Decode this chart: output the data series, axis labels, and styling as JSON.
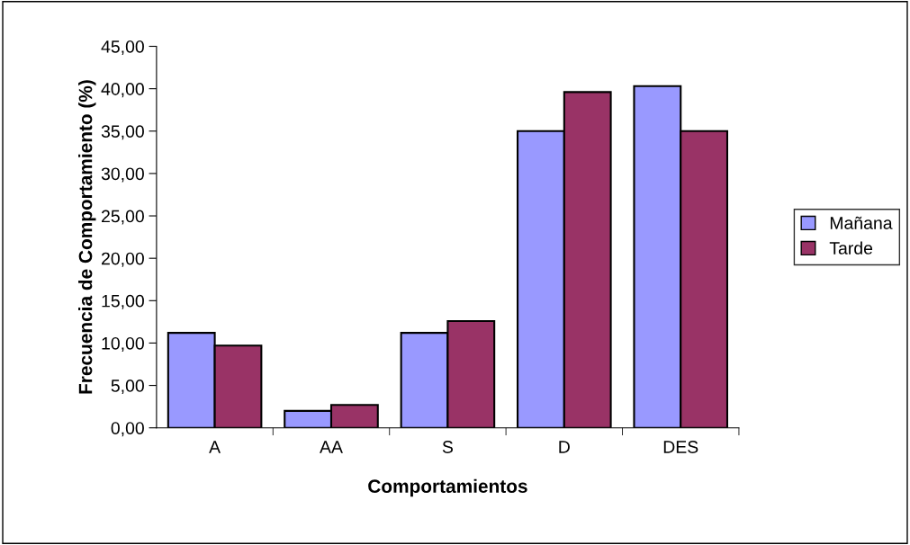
{
  "chart_data": {
    "type": "bar",
    "xlabel": "Comportamientos",
    "ylabel": "Frecuencia de Comportamiento (%)",
    "categories": [
      "A",
      "AA",
      "S",
      "D",
      "DES"
    ],
    "series": [
      {
        "name": "Mañana",
        "color": "#9999ff",
        "values": [
          11.2,
          2.0,
          11.2,
          35.0,
          40.3
        ]
      },
      {
        "name": "Tarde",
        "color": "#993366",
        "values": [
          9.7,
          2.7,
          12.6,
          39.6,
          35.0
        ]
      }
    ],
    "ylim": [
      0,
      45
    ],
    "yticks": [
      {
        "value": 0,
        "label": "0,00"
      },
      {
        "value": 5,
        "label": "5,00"
      },
      {
        "value": 10,
        "label": "10,00"
      },
      {
        "value": 15,
        "label": "15,00"
      },
      {
        "value": 20,
        "label": "20,00"
      },
      {
        "value": 25,
        "label": "25,00"
      },
      {
        "value": 30,
        "label": "30,00"
      },
      {
        "value": 35,
        "label": "35,00"
      },
      {
        "value": 40,
        "label": "40,00"
      },
      {
        "value": 45,
        "label": "45,00"
      }
    ],
    "grid": false,
    "legend": "right"
  }
}
